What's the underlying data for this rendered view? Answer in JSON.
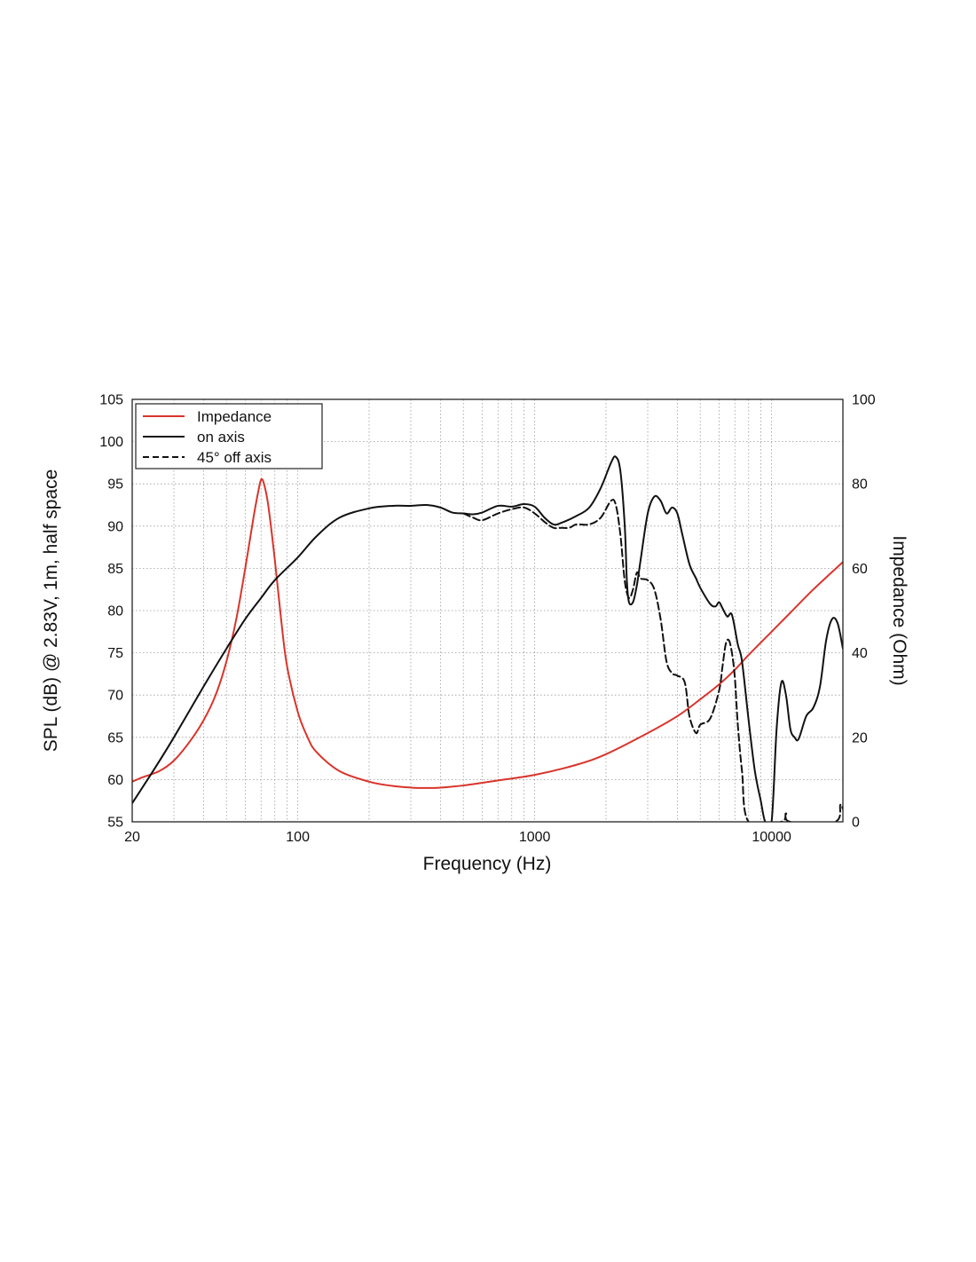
{
  "chart_data": {
    "type": "line",
    "xlabel": "Frequency (Hz)",
    "ylabel": "SPL (dB) @ 2.83V, 1m, half space",
    "y2label": "Impedance (Ohm)",
    "xscale": "log",
    "xlim": [
      20,
      20000
    ],
    "ylim": [
      55,
      105
    ],
    "y2lim": [
      0,
      100
    ],
    "grid": true,
    "legend_position": "top-left",
    "x_tick_labels": [
      "20",
      "100",
      "1000",
      "10000"
    ],
    "y_tick_labels": [
      "55",
      "60",
      "65",
      "70",
      "75",
      "80",
      "85",
      "90",
      "95",
      "100",
      "105"
    ],
    "y2_tick_labels": [
      "0",
      "20",
      "40",
      "60",
      "80",
      "100"
    ],
    "series": [
      {
        "name": "Impedance",
        "axis": "right",
        "color": "#d9342b",
        "dash": "solid",
        "points": [
          [
            20,
            9.5
          ],
          [
            22,
            10.5
          ],
          [
            26,
            12
          ],
          [
            30,
            14.5
          ],
          [
            35,
            19
          ],
          [
            40,
            24
          ],
          [
            45,
            30
          ],
          [
            50,
            38
          ],
          [
            55,
            48
          ],
          [
            60,
            60
          ],
          [
            65,
            72
          ],
          [
            68,
            78
          ],
          [
            70,
            81
          ],
          [
            72,
            80
          ],
          [
            75,
            75
          ],
          [
            80,
            62
          ],
          [
            85,
            48
          ],
          [
            90,
            37
          ],
          [
            100,
            26
          ],
          [
            110,
            20
          ],
          [
            120,
            16.5
          ],
          [
            150,
            12
          ],
          [
            200,
            9.5
          ],
          [
            250,
            8.5
          ],
          [
            300,
            8.1
          ],
          [
            350,
            8
          ],
          [
            400,
            8.1
          ],
          [
            500,
            8.6
          ],
          [
            700,
            9.8
          ],
          [
            1000,
            11.1
          ],
          [
            1500,
            13.5
          ],
          [
            2000,
            16
          ],
          [
            3000,
            21
          ],
          [
            4000,
            25
          ],
          [
            5000,
            29
          ],
          [
            6000,
            32.5
          ],
          [
            7000,
            36
          ],
          [
            8000,
            39.5
          ],
          [
            10000,
            45
          ],
          [
            12000,
            49.5
          ],
          [
            15000,
            55
          ],
          [
            20000,
            61.5
          ]
        ]
      },
      {
        "name": "on axis",
        "axis": "left",
        "color": "#111111",
        "dash": "solid",
        "points": [
          [
            20,
            57.2
          ],
          [
            25,
            61.4
          ],
          [
            30,
            65
          ],
          [
            40,
            71
          ],
          [
            50,
            75.5
          ],
          [
            60,
            79
          ],
          [
            70,
            81.5
          ],
          [
            80,
            83.6
          ],
          [
            100,
            86.3
          ],
          [
            120,
            88.8
          ],
          [
            150,
            91
          ],
          [
            200,
            92.1
          ],
          [
            250,
            92.4
          ],
          [
            300,
            92.4
          ],
          [
            350,
            92.5
          ],
          [
            400,
            92.2
          ],
          [
            450,
            91.6
          ],
          [
            500,
            91.5
          ],
          [
            550,
            91.4
          ],
          [
            600,
            91.6
          ],
          [
            700,
            92.4
          ],
          [
            800,
            92.3
          ],
          [
            900,
            92.6
          ],
          [
            1000,
            92.3
          ],
          [
            1100,
            91
          ],
          [
            1200,
            90.2
          ],
          [
            1300,
            90.4
          ],
          [
            1500,
            91.2
          ],
          [
            1700,
            92.2
          ],
          [
            1900,
            94.5
          ],
          [
            2100,
            97.5
          ],
          [
            2200,
            98.2
          ],
          [
            2300,
            96.5
          ],
          [
            2400,
            90
          ],
          [
            2450,
            83.5
          ],
          [
            2500,
            81
          ],
          [
            2600,
            81
          ],
          [
            2700,
            83
          ],
          [
            2800,
            86
          ],
          [
            3000,
            91.5
          ],
          [
            3200,
            93.5
          ],
          [
            3400,
            93
          ],
          [
            3600,
            91.5
          ],
          [
            3800,
            92.2
          ],
          [
            4000,
            91.5
          ],
          [
            4200,
            89
          ],
          [
            4500,
            85.5
          ],
          [
            4800,
            83.8
          ],
          [
            5000,
            82.7
          ],
          [
            5500,
            80.8
          ],
          [
            5800,
            80.5
          ],
          [
            6000,
            81
          ],
          [
            6200,
            80.3
          ],
          [
            6500,
            79.3
          ],
          [
            6800,
            79.5
          ],
          [
            7200,
            76
          ],
          [
            7500,
            74
          ],
          [
            8000,
            67
          ],
          [
            8500,
            61
          ],
          [
            9000,
            57.5
          ],
          [
            9400,
            55
          ],
          [
            10000,
            55
          ],
          [
            10500,
            66
          ],
          [
            11000,
            71.5
          ],
          [
            11500,
            70
          ],
          [
            12000,
            66
          ],
          [
            12500,
            65
          ],
          [
            13000,
            64.8
          ],
          [
            14000,
            67.5
          ],
          [
            15000,
            68.5
          ],
          [
            16000,
            71
          ],
          [
            17000,
            76.5
          ],
          [
            18000,
            79
          ],
          [
            19000,
            78.5
          ],
          [
            20000,
            75.5
          ]
        ]
      },
      {
        "name": "45° off axis",
        "axis": "left",
        "color": "#111111",
        "dash": "dashed",
        "points": [
          [
            500,
            91.5
          ],
          [
            550,
            91
          ],
          [
            600,
            90.7
          ],
          [
            700,
            91.5
          ],
          [
            800,
            92
          ],
          [
            900,
            92.2
          ],
          [
            1000,
            91.5
          ],
          [
            1100,
            90.5
          ],
          [
            1200,
            89.8
          ],
          [
            1300,
            89.8
          ],
          [
            1400,
            89.8
          ],
          [
            1500,
            90.2
          ],
          [
            1700,
            90.2
          ],
          [
            1900,
            91
          ],
          [
            2100,
            93
          ],
          [
            2200,
            92.5
          ],
          [
            2300,
            89
          ],
          [
            2400,
            83.5
          ],
          [
            2500,
            81.5
          ],
          [
            2600,
            82.5
          ],
          [
            2700,
            84.5
          ],
          [
            2800,
            83.8
          ],
          [
            3000,
            83.6
          ],
          [
            3200,
            82.5
          ],
          [
            3400,
            79
          ],
          [
            3600,
            74
          ],
          [
            3800,
            72.6
          ],
          [
            4000,
            72.3
          ],
          [
            4300,
            71.5
          ],
          [
            4500,
            67.5
          ],
          [
            4800,
            65.5
          ],
          [
            5000,
            66.5
          ],
          [
            5500,
            67.2
          ],
          [
            6000,
            70.5
          ],
          [
            6200,
            73.3
          ],
          [
            6400,
            76
          ],
          [
            6600,
            76.5
          ],
          [
            6800,
            75
          ],
          [
            7000,
            72
          ],
          [
            7200,
            66.5
          ],
          [
            7500,
            61
          ],
          [
            8000,
            55
          ],
          [
            11000,
            55
          ],
          [
            11500,
            56
          ],
          [
            12000,
            55
          ],
          [
            18500,
            55
          ],
          [
            19500,
            57
          ],
          [
            20000,
            56.5
          ]
        ]
      }
    ]
  }
}
